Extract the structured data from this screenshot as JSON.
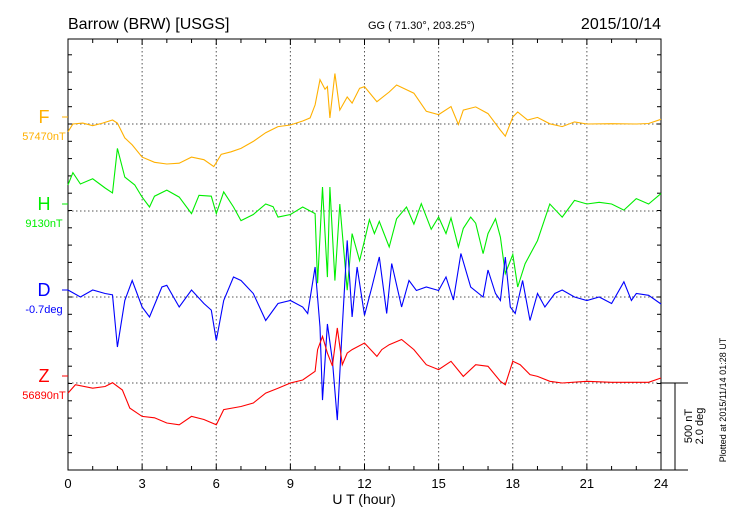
{
  "chart_data": {
    "type": "line",
    "title": "Barrow (BRW)  [USGS]",
    "subtitle": "GG ( 71.30°, 203.25°)",
    "date": "2015/10/14",
    "xlabel": "U T (hour)",
    "xlim": [
      0,
      24
    ],
    "xticks": [
      "0",
      "3",
      "6",
      "9",
      "12",
      "15",
      "18",
      "21",
      "24"
    ],
    "scale_label_1": "500 nT",
    "scale_label_2": "2.0 deg",
    "plotted_note": "Plotted at 2015/11/14 01:28 UT",
    "grid": true,
    "series": [
      {
        "name": "F",
        "baseline_label": "57470nT",
        "color": "#ffb000",
        "unit": "nT",
        "points": [
          [
            0,
            -44
          ],
          [
            0.2,
            0
          ],
          [
            0.6,
            5
          ],
          [
            1,
            -10
          ],
          [
            1.4,
            5
          ],
          [
            1.8,
            23
          ],
          [
            2,
            5
          ],
          [
            2.3,
            -80
          ],
          [
            2.6,
            -120
          ],
          [
            3,
            -190
          ],
          [
            3.5,
            -220
          ],
          [
            4,
            -230
          ],
          [
            4.5,
            -225
          ],
          [
            5,
            -190
          ],
          [
            5.5,
            -205
          ],
          [
            5.9,
            -245
          ],
          [
            6.2,
            -175
          ],
          [
            6.6,
            -160
          ],
          [
            7,
            -140
          ],
          [
            7.5,
            -100
          ],
          [
            8,
            -50
          ],
          [
            8.5,
            -15
          ],
          [
            9,
            -6
          ],
          [
            9.5,
            17
          ],
          [
            9.8,
            35
          ],
          [
            10,
            110
          ],
          [
            10.2,
            255
          ],
          [
            10.4,
            200
          ],
          [
            10.5,
            215
          ],
          [
            10.6,
            35
          ],
          [
            10.8,
            290
          ],
          [
            11,
            80
          ],
          [
            11.3,
            155
          ],
          [
            11.5,
            120
          ],
          [
            11.8,
            205
          ],
          [
            12,
            215
          ],
          [
            12.5,
            128
          ],
          [
            13,
            184
          ],
          [
            13.3,
            224
          ],
          [
            14,
            177
          ],
          [
            14.5,
            73
          ],
          [
            15,
            54
          ],
          [
            15.5,
            100
          ],
          [
            15.8,
            -3
          ],
          [
            16,
            80
          ],
          [
            16.5,
            98
          ],
          [
            17,
            60
          ],
          [
            17.5,
            -35
          ],
          [
            17.7,
            -70
          ],
          [
            18,
            40
          ],
          [
            18.2,
            69
          ],
          [
            18.6,
            23
          ],
          [
            19,
            38
          ],
          [
            19.5,
            1
          ],
          [
            20,
            -15
          ],
          [
            20.5,
            12
          ],
          [
            21,
            0
          ],
          [
            22,
            2
          ],
          [
            23,
            0
          ],
          [
            23.5,
            3
          ],
          [
            24,
            27
          ]
        ]
      },
      {
        "name": "H",
        "baseline_label": "9130nT",
        "color": "#00ee00",
        "unit": "nT",
        "points": [
          [
            0,
            150
          ],
          [
            0.2,
            220
          ],
          [
            0.5,
            155
          ],
          [
            1,
            185
          ],
          [
            1.5,
            132
          ],
          [
            1.8,
            104
          ],
          [
            2,
            360
          ],
          [
            2.3,
            195
          ],
          [
            2.7,
            150
          ],
          [
            3,
            80
          ],
          [
            3.3,
            23
          ],
          [
            3.5,
            85
          ],
          [
            4,
            120
          ],
          [
            4.5,
            80
          ],
          [
            5,
            -15
          ],
          [
            5.3,
            90
          ],
          [
            5.8,
            85
          ],
          [
            6,
            -15
          ],
          [
            6.3,
            110
          ],
          [
            6.7,
            23
          ],
          [
            7,
            -55
          ],
          [
            7.5,
            -20
          ],
          [
            8,
            40
          ],
          [
            8.3,
            25
          ],
          [
            8.5,
            -35
          ],
          [
            9,
            -20
          ],
          [
            9.5,
            23
          ],
          [
            10,
            -15
          ],
          [
            10.1,
            -415
          ],
          [
            10.3,
            138
          ],
          [
            10.5,
            -380
          ],
          [
            10.6,
            138
          ],
          [
            10.8,
            -400
          ],
          [
            11,
            40
          ],
          [
            11.3,
            -455
          ],
          [
            11.5,
            -130
          ],
          [
            11.8,
            -285
          ],
          [
            12,
            -170
          ],
          [
            12.2,
            -50
          ],
          [
            12.4,
            -130
          ],
          [
            12.6,
            -60
          ],
          [
            13,
            -207
          ],
          [
            13.3,
            -45
          ],
          [
            13.7,
            23
          ],
          [
            14,
            -75
          ],
          [
            14.3,
            42
          ],
          [
            14.7,
            -105
          ],
          [
            15,
            -35
          ],
          [
            15.3,
            -130
          ],
          [
            15.5,
            -40
          ],
          [
            15.8,
            -207
          ],
          [
            16,
            -100
          ],
          [
            16.3,
            -35
          ],
          [
            16.5,
            -70
          ],
          [
            16.8,
            -245
          ],
          [
            17,
            -130
          ],
          [
            17.3,
            -45
          ],
          [
            17.5,
            -150
          ],
          [
            17.7,
            -360
          ],
          [
            18,
            -250
          ],
          [
            18.2,
            -437
          ],
          [
            18.5,
            -303
          ],
          [
            19,
            -170
          ],
          [
            19.5,
            40
          ],
          [
            20,
            -35
          ],
          [
            20.5,
            61
          ],
          [
            21,
            40
          ],
          [
            21.5,
            50
          ],
          [
            22,
            40
          ],
          [
            22.5,
            5
          ],
          [
            23,
            71
          ],
          [
            23.5,
            40
          ],
          [
            24,
            100
          ]
        ]
      },
      {
        "name": "D",
        "baseline_label": "-0.7deg",
        "color": "#0000ff",
        "unit": "deg",
        "points": [
          [
            0,
            0.16
          ],
          [
            0.5,
            0
          ],
          [
            1,
            0.16
          ],
          [
            1.5,
            0.08
          ],
          [
            1.8,
            0.05
          ],
          [
            2,
            -1.15
          ],
          [
            2.3,
            -0.08
          ],
          [
            2.6,
            0.38
          ],
          [
            3,
            -0.23
          ],
          [
            3.3,
            -0.46
          ],
          [
            3.8,
            0.23
          ],
          [
            4,
            0.27
          ],
          [
            4.5,
            -0.23
          ],
          [
            5,
            0.16
          ],
          [
            5.5,
            -0.15
          ],
          [
            5.8,
            -0.3
          ],
          [
            6,
            -1.0
          ],
          [
            6.3,
            -0.08
          ],
          [
            6.7,
            0.46
          ],
          [
            7,
            0.38
          ],
          [
            7.5,
            0.08
          ],
          [
            8,
            -0.54
          ],
          [
            8.5,
            -0.15
          ],
          [
            9,
            -0.08
          ],
          [
            9.5,
            -0.23
          ],
          [
            9.7,
            -0.38
          ],
          [
            10,
            0.69
          ],
          [
            10.2,
            -0.69
          ],
          [
            10.3,
            -2.37
          ],
          [
            10.5,
            -0.62
          ],
          [
            10.7,
            -1.46
          ],
          [
            10.9,
            -2.83
          ],
          [
            11.1,
            -0.69
          ],
          [
            11.3,
            1.3
          ],
          [
            11.5,
            -0.46
          ],
          [
            11.7,
            0.69
          ],
          [
            12,
            -0.42
          ],
          [
            12.3,
            0.23
          ],
          [
            12.6,
            0.92
          ],
          [
            12.9,
            -0.38
          ],
          [
            13.1,
            0.77
          ],
          [
            13.5,
            -0.23
          ],
          [
            13.8,
            0.38
          ],
          [
            14.1,
            0.15
          ],
          [
            14.5,
            0.23
          ],
          [
            15,
            0.15
          ],
          [
            15.3,
            0.46
          ],
          [
            15.6,
            -0.07
          ],
          [
            15.9,
            1.0
          ],
          [
            16.3,
            0.23
          ],
          [
            16.8,
            0
          ],
          [
            17,
            0.62
          ],
          [
            17.3,
            0.08
          ],
          [
            17.5,
            -0.08
          ],
          [
            17.7,
            0.92
          ],
          [
            17.9,
            -0.23
          ],
          [
            18.1,
            -0.38
          ],
          [
            18.4,
            0.38
          ],
          [
            18.7,
            -0.54
          ],
          [
            19,
            0.08
          ],
          [
            19.3,
            -0.23
          ],
          [
            19.7,
            0.08
          ],
          [
            20,
            0.16
          ],
          [
            20.5,
            0
          ],
          [
            21,
            -0.08
          ],
          [
            21.5,
            0
          ],
          [
            22,
            -0.15
          ],
          [
            22.5,
            0.35
          ],
          [
            22.8,
            -0.08
          ],
          [
            23,
            0.08
          ],
          [
            23.5,
            0.04
          ],
          [
            24,
            -0.16
          ]
        ]
      },
      {
        "name": "Z",
        "baseline_label": "56890nT",
        "color": "#ff0000",
        "unit": "nT",
        "points": [
          [
            0,
            -58
          ],
          [
            0.3,
            -10
          ],
          [
            1,
            -30
          ],
          [
            1.5,
            -20
          ],
          [
            1.8,
            2
          ],
          [
            2.2,
            -40
          ],
          [
            2.5,
            -144
          ],
          [
            3,
            -192
          ],
          [
            3.5,
            -200
          ],
          [
            4,
            -230
          ],
          [
            4.5,
            -240
          ],
          [
            5,
            -192
          ],
          [
            5.5,
            -210
          ],
          [
            6,
            -240
          ],
          [
            6.3,
            -153
          ],
          [
            7,
            -135
          ],
          [
            7.5,
            -115
          ],
          [
            8,
            -58
          ],
          [
            8.5,
            -30
          ],
          [
            9,
            0
          ],
          [
            9.5,
            17
          ],
          [
            10,
            67
          ],
          [
            10.1,
            192
          ],
          [
            10.3,
            268
          ],
          [
            10.5,
            172
          ],
          [
            10.7,
            98
          ],
          [
            10.9,
            316
          ],
          [
            11.1,
            105
          ],
          [
            11.3,
            172
          ],
          [
            11.5,
            192
          ],
          [
            12,
            230
          ],
          [
            12.5,
            153
          ],
          [
            12.7,
            192
          ],
          [
            13,
            220
          ],
          [
            13.5,
            250
          ],
          [
            14,
            192
          ],
          [
            14.5,
            105
          ],
          [
            15,
            77
          ],
          [
            15.5,
            125
          ],
          [
            16,
            38
          ],
          [
            16.5,
            105
          ],
          [
            17,
            96
          ],
          [
            17.5,
            10
          ],
          [
            17.7,
            -10
          ],
          [
            18,
            125
          ],
          [
            18.3,
            105
          ],
          [
            18.7,
            48
          ],
          [
            19,
            38
          ],
          [
            19.5,
            10
          ],
          [
            20,
            0
          ],
          [
            21,
            10
          ],
          [
            22,
            4
          ],
          [
            23,
            4
          ],
          [
            23.5,
            4
          ],
          [
            24,
            29
          ]
        ]
      }
    ]
  }
}
